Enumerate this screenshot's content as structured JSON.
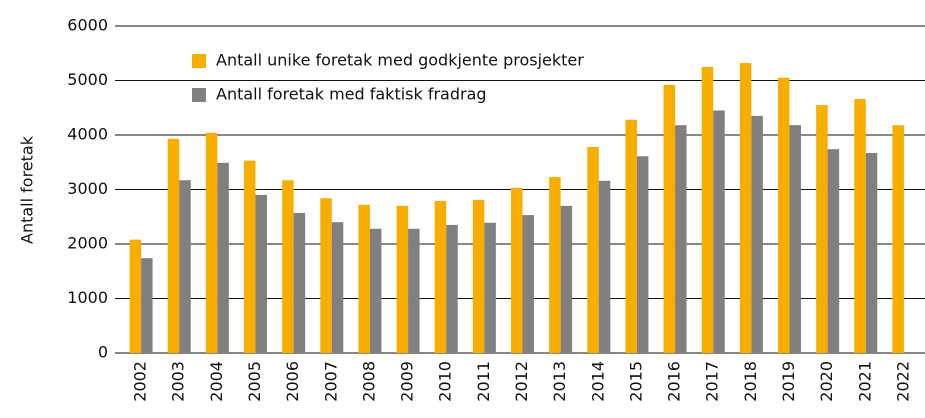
{
  "chart_data": {
    "type": "bar",
    "ylabel": "Antall foretak",
    "categories": [
      "2002",
      "2003",
      "2004",
      "2005",
      "2006",
      "2007",
      "2008",
      "2009",
      "2010",
      "2011",
      "2012",
      "2013",
      "2014",
      "2015",
      "2016",
      "2017",
      "2018",
      "2019",
      "2020",
      "2021",
      "2022"
    ],
    "series": [
      {
        "name": "Antall unike foretak med godkjente prosjekter",
        "color": "#f8ae00",
        "values": [
          2080,
          3930,
          4040,
          3530,
          3170,
          2840,
          2720,
          2700,
          2790,
          2810,
          3030,
          3230,
          3780,
          4280,
          4920,
          5250,
          5320,
          5050,
          4550,
          4660,
          4180
        ]
      },
      {
        "name": "Antall foretak med faktisk fradrag",
        "color": "#808080",
        "values": [
          1740,
          3170,
          3490,
          2900,
          2570,
          2400,
          2280,
          2280,
          2350,
          2390,
          2530,
          2700,
          3160,
          3610,
          4180,
          4450,
          4350,
          4180,
          3740,
          3670,
          null
        ]
      }
    ],
    "ylim": [
      0,
      6000
    ],
    "yticks": [
      0,
      1000,
      2000,
      3000,
      4000,
      5000,
      6000
    ],
    "grid": true,
    "legend": "top-left"
  }
}
